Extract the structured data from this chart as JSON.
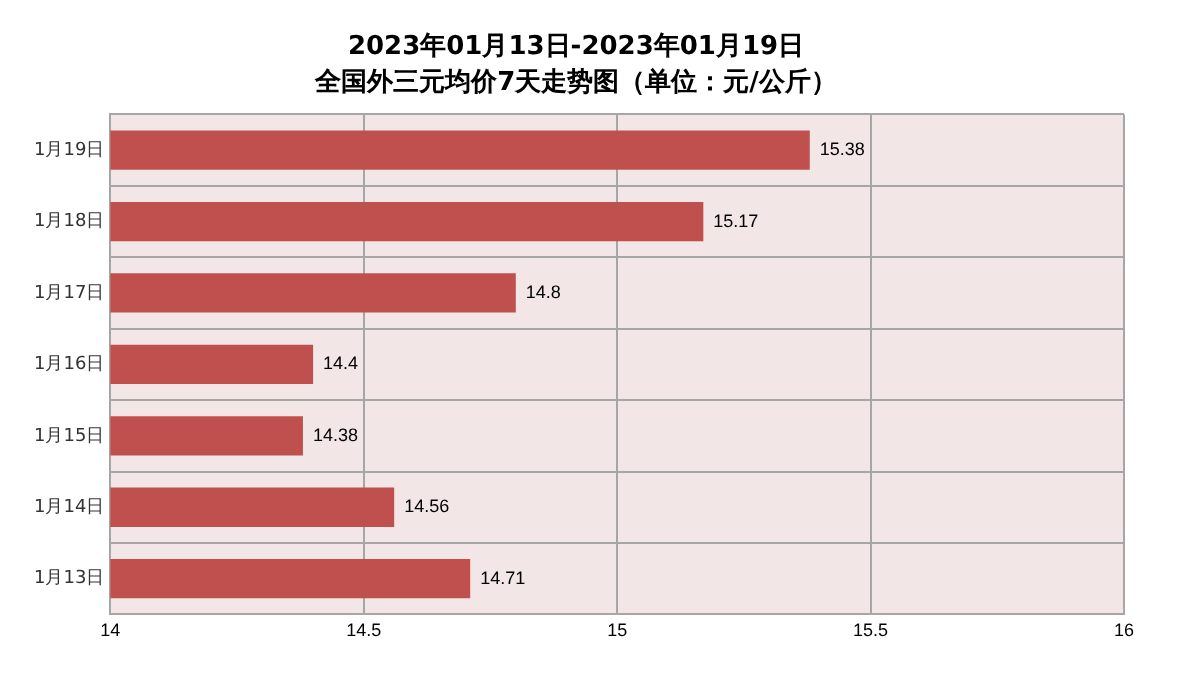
{
  "chart_data": {
    "type": "bar",
    "orientation": "horizontal",
    "title": "2023年01月13日-2023年01月19日",
    "subtitle": "全国外三元均价7天走势图（单位：元/公斤）",
    "categories": [
      "1月19日",
      "1月18日",
      "1月17日",
      "1月16日",
      "1月15日",
      "1月14日",
      "1月13日"
    ],
    "values": [
      15.38,
      15.17,
      14.8,
      14.4,
      14.38,
      14.56,
      14.71
    ],
    "color": "#c0504d",
    "xlim": [
      14,
      16
    ],
    "xticks": [
      14,
      14.5,
      15,
      15.5,
      16
    ],
    "grid": true,
    "data_labels": true
  }
}
